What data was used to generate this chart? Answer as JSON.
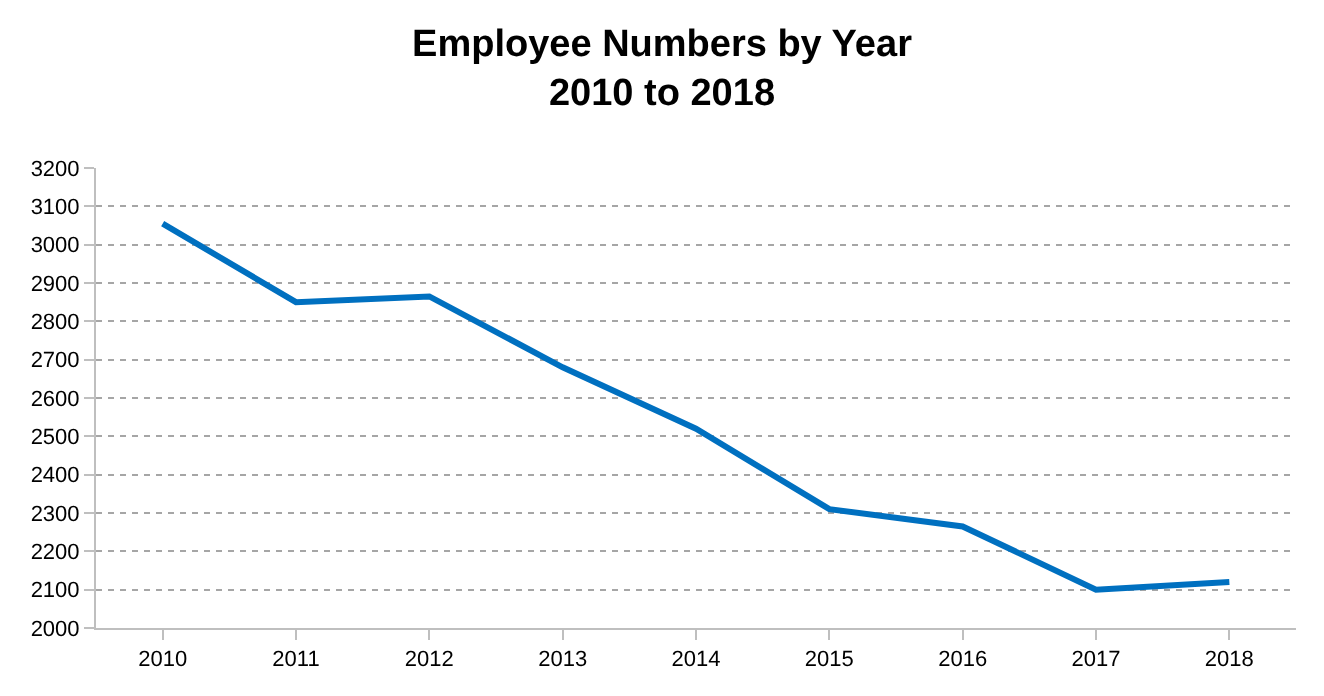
{
  "chart_data": {
    "type": "line",
    "title": "Employee Numbers by Year\n2010 to 2018",
    "categories": [
      "2010",
      "2011",
      "2012",
      "2013",
      "2014",
      "2015",
      "2016",
      "2017",
      "2018"
    ],
    "series": [
      {
        "color": "#0070c0",
        "values": [
          3055,
          2850,
          2865,
          2680,
          2520,
          2310,
          2265,
          2100,
          2120
        ]
      }
    ],
    "ylim": [
      2000,
      3200
    ],
    "yticks": [
      2000,
      2100,
      2200,
      2300,
      2400,
      2500,
      2600,
      2700,
      2800,
      2900,
      3000,
      3100,
      3200
    ],
    "grid": "y",
    "marker": "none",
    "line_style": "solid"
  }
}
